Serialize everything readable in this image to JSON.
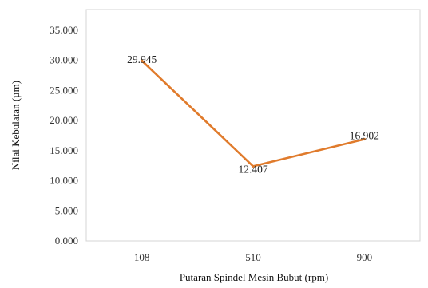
{
  "chart_data": {
    "type": "line",
    "categories": [
      "108",
      "510",
      "900"
    ],
    "series": [
      {
        "values": [
          29.945,
          12.407,
          16.902
        ],
        "color": "#E07B2C"
      }
    ],
    "data_labels": [
      "29.945",
      "12.407",
      "16.902"
    ],
    "y_ticks": [
      0,
      5,
      10,
      15,
      20,
      25,
      30,
      35
    ],
    "y_tick_labels": [
      "0.000",
      "5.000",
      "10.000",
      "15.000",
      "20.000",
      "25.000",
      "30.000",
      "35.000"
    ],
    "ylim": [
      0,
      35
    ],
    "xlabel": "Putaran Spindel Mesin Bubut (rpm)",
    "ylabel": "Nilai Kebulatan (µm)",
    "grid": false,
    "legend": "none"
  }
}
